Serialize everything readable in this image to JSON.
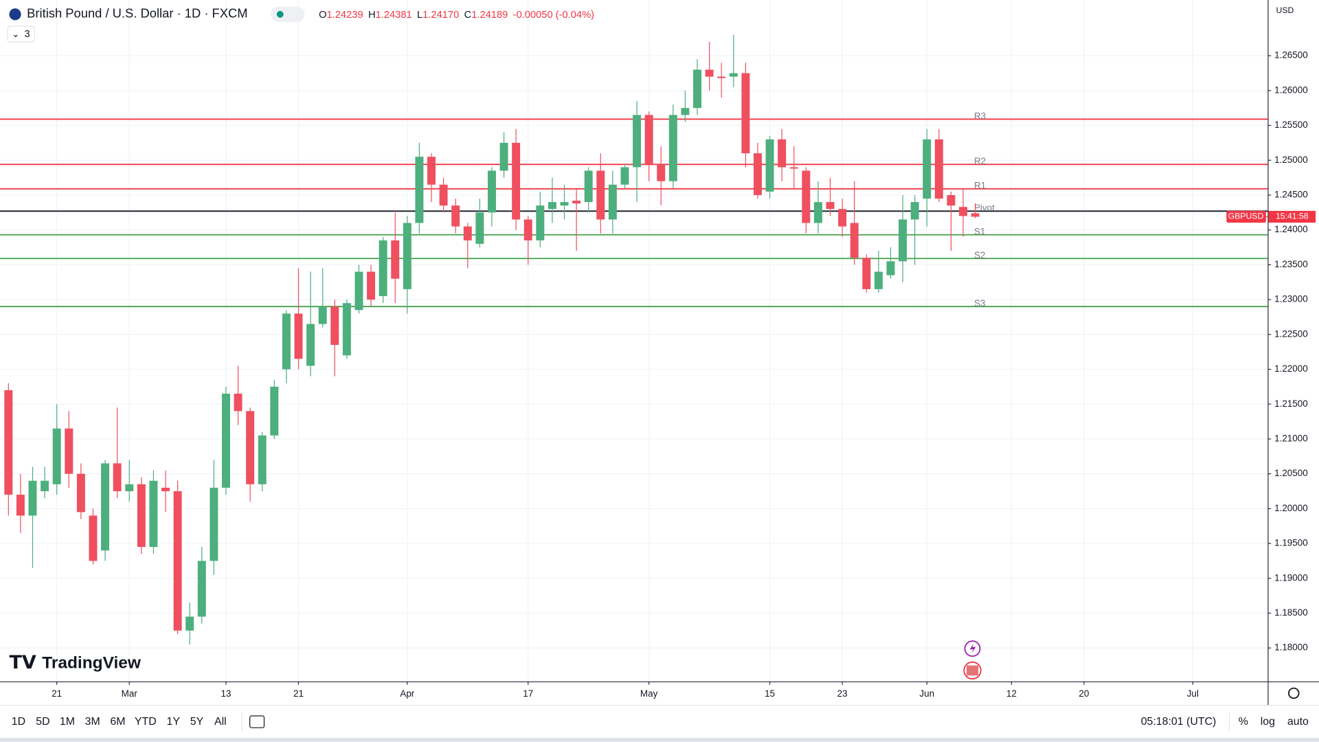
{
  "header": {
    "symbol": "British Pound / U.S. Dollar · 1D · FXCM",
    "ohlc": [
      {
        "label": "O",
        "value": "1.24239"
      },
      {
        "label": "H",
        "value": "1.24381"
      },
      {
        "label": "L",
        "value": "1.24170"
      },
      {
        "label": "C",
        "value": "1.24189"
      }
    ],
    "change": "-0.00050 (-0.04%)",
    "indicator_count": "3",
    "currency": "USD"
  },
  "logo": "TradingView",
  "price_label": {
    "symbol": "GBPUSD",
    "countdown": "15:41:58"
  },
  "toolbar": {
    "ranges": [
      "1D",
      "5D",
      "1M",
      "3M",
      "6M",
      "YTD",
      "1Y",
      "5Y",
      "All"
    ],
    "clock": "05:18:01 (UTC)",
    "percent": "%",
    "log": "log",
    "auto": "auto"
  },
  "chart_data": {
    "type": "candlestick",
    "up_color": "#4caf7d",
    "down_color": "#ef4f5f",
    "grid": true,
    "open": [
      1.217,
      1.202,
      1.199,
      1.2025,
      1.2035,
      1.2115,
      1.205,
      1.199,
      1.194,
      1.2065,
      1.2025,
      1.2035,
      1.1945,
      1.203,
      1.2025,
      1.1825,
      1.1845,
      1.1925,
      1.203,
      1.2165,
      1.214,
      1.2035,
      1.2105,
      1.22,
      1.228,
      1.2205,
      1.2265,
      1.229,
      1.222,
      1.2285,
      1.234,
      1.2305,
      1.2385,
      1.2315,
      1.241,
      1.2505,
      1.2465,
      1.2435,
      1.2405,
      1.238,
      1.2425,
      1.2485,
      1.2525,
      1.2415,
      1.2385,
      1.243,
      1.2435,
      1.2442,
      1.244,
      1.2485,
      1.2415,
      1.2465,
      1.249,
      1.2565,
      1.2495,
      1.247,
      1.2565,
      1.2575,
      1.263,
      1.262,
      1.262,
      1.2625,
      1.251,
      1.2455,
      1.253,
      1.249,
      1.2485,
      1.241,
      1.244,
      1.243,
      1.241,
      1.236,
      1.2315,
      1.2335,
      1.2355,
      1.2415,
      1.2445,
      1.253,
      1.245,
      1.2433,
      1.24239
    ],
    "high": [
      1.218,
      1.205,
      1.206,
      1.206,
      1.215,
      1.214,
      1.2065,
      1.2,
      1.207,
      1.2145,
      1.207,
      1.2045,
      1.2055,
      1.2055,
      1.204,
      1.1865,
      1.1945,
      1.207,
      1.2175,
      1.2205,
      1.2145,
      1.211,
      1.2185,
      1.2285,
      1.2345,
      1.234,
      1.2345,
      1.23,
      1.23,
      1.235,
      1.235,
      1.239,
      1.2425,
      1.242,
      1.2525,
      1.251,
      1.2475,
      1.2445,
      1.241,
      1.2445,
      1.249,
      1.254,
      1.2545,
      1.242,
      1.2455,
      1.2475,
      1.2465,
      1.246,
      1.249,
      1.251,
      1.2485,
      1.2495,
      1.2585,
      1.257,
      1.252,
      1.258,
      1.26,
      1.2645,
      1.267,
      1.264,
      1.268,
      1.264,
      1.2525,
      1.2535,
      1.2545,
      1.252,
      1.249,
      1.247,
      1.2475,
      1.2445,
      1.247,
      1.2365,
      1.237,
      1.2375,
      1.245,
      1.245,
      1.2545,
      1.2545,
      1.2455,
      1.246,
      1.24381
    ],
    "low": [
      1.199,
      1.1965,
      1.1915,
      1.2015,
      1.202,
      1.203,
      1.1985,
      1.192,
      1.1925,
      1.2015,
      1.201,
      1.1935,
      1.1935,
      1.1995,
      1.182,
      1.1805,
      1.1835,
      1.1905,
      1.202,
      1.212,
      1.201,
      1.2025,
      1.21,
      1.218,
      1.22,
      1.219,
      1.226,
      1.219,
      1.2215,
      1.228,
      1.229,
      1.2295,
      1.2295,
      1.228,
      1.2395,
      1.244,
      1.2425,
      1.2395,
      1.2345,
      1.2375,
      1.2405,
      1.2475,
      1.24,
      1.235,
      1.2375,
      1.241,
      1.2415,
      1.237,
      1.2425,
      1.2395,
      1.2395,
      1.246,
      1.244,
      1.247,
      1.2435,
      1.246,
      1.2555,
      1.2565,
      1.26,
      1.259,
      1.2605,
      1.249,
      1.2445,
      1.2445,
      1.247,
      1.246,
      1.2395,
      1.2395,
      1.242,
      1.239,
      1.235,
      1.231,
      1.231,
      1.233,
      1.2325,
      1.235,
      1.2405,
      1.244,
      1.237,
      1.239,
      1.2417
    ],
    "close": [
      1.202,
      1.199,
      1.204,
      1.204,
      1.2115,
      1.205,
      1.1995,
      1.1925,
      1.2065,
      1.2025,
      1.2035,
      1.1945,
      1.204,
      1.2025,
      1.1825,
      1.1845,
      1.1925,
      1.203,
      1.2165,
      1.214,
      1.2035,
      1.2105,
      1.2175,
      1.228,
      1.2215,
      1.2265,
      1.229,
      1.2235,
      1.2295,
      1.234,
      1.23,
      1.2385,
      1.233,
      1.241,
      1.2505,
      1.2465,
      1.2435,
      1.2405,
      1.2385,
      1.2425,
      1.2485,
      1.2525,
      1.2415,
      1.2385,
      1.2435,
      1.244,
      1.244,
      1.2438,
      1.2485,
      1.2415,
      1.2465,
      1.249,
      1.2565,
      1.2495,
      1.247,
      1.2565,
      1.2575,
      1.263,
      1.262,
      1.2618,
      1.2625,
      1.251,
      1.245,
      1.253,
      1.249,
      1.2488,
      1.241,
      1.244,
      1.243,
      1.2405,
      1.236,
      1.2315,
      1.234,
      1.2355,
      1.2415,
      1.244,
      1.253,
      1.2445,
      1.2435,
      1.242,
      1.24189
    ],
    "xlim": [
      -0.7,
      104.2
    ],
    "xticks": [
      {
        "value": 4,
        "label": "21"
      },
      {
        "value": 10,
        "label": "Mar"
      },
      {
        "value": 18,
        "label": "13"
      },
      {
        "value": 24,
        "label": "21"
      },
      {
        "value": 33,
        "label": "Apr"
      },
      {
        "value": 43,
        "label": "17"
      },
      {
        "value": 53,
        "label": "May"
      },
      {
        "value": 63,
        "label": "15"
      },
      {
        "value": 69,
        "label": "23"
      },
      {
        "value": 76,
        "label": "Jun"
      },
      {
        "value": 83,
        "label": "12"
      },
      {
        "value": 89,
        "label": "20"
      },
      {
        "value": 98,
        "label": "Jul"
      }
    ],
    "ylim": [
      1.1752,
      1.273
    ],
    "yticks": [
      {
        "value": 1.18,
        "label": "1.18000"
      },
      {
        "value": 1.185,
        "label": "1.18500"
      },
      {
        "value": 1.19,
        "label": "1.19000"
      },
      {
        "value": 1.195,
        "label": "1.19500"
      },
      {
        "value": 1.2,
        "label": "1.20000"
      },
      {
        "value": 1.205,
        "label": "1.20500"
      },
      {
        "value": 1.21,
        "label": "1.21000"
      },
      {
        "value": 1.215,
        "label": "1.21500"
      },
      {
        "value": 1.22,
        "label": "1.22000"
      },
      {
        "value": 1.225,
        "label": "1.22500"
      },
      {
        "value": 1.23,
        "label": "1.23000"
      },
      {
        "value": 1.235,
        "label": "1.23500"
      },
      {
        "value": 1.24,
        "label": "1.24000"
      },
      {
        "value": 1.245,
        "label": "1.24500"
      },
      {
        "value": 1.25,
        "label": "1.25000"
      },
      {
        "value": 1.255,
        "label": "1.25500"
      },
      {
        "value": 1.26,
        "label": "1.26000"
      },
      {
        "value": 1.265,
        "label": "1.26500"
      }
    ],
    "levels": [
      {
        "name": "R3",
        "value": 1.2559,
        "color": "#f23645"
      },
      {
        "name": "R2",
        "value": 1.2494,
        "color": "#f23645"
      },
      {
        "name": "R1",
        "value": 1.2459,
        "color": "#f23645"
      },
      {
        "name": "Pivot",
        "value": 1.2427,
        "color": "#131722"
      },
      {
        "name": "S1",
        "value": 1.2393,
        "color": "#43a047"
      },
      {
        "name": "S2",
        "value": 1.2359,
        "color": "#43a047"
      },
      {
        "name": "S3",
        "value": 1.229,
        "color": "#43a047"
      }
    ]
  }
}
